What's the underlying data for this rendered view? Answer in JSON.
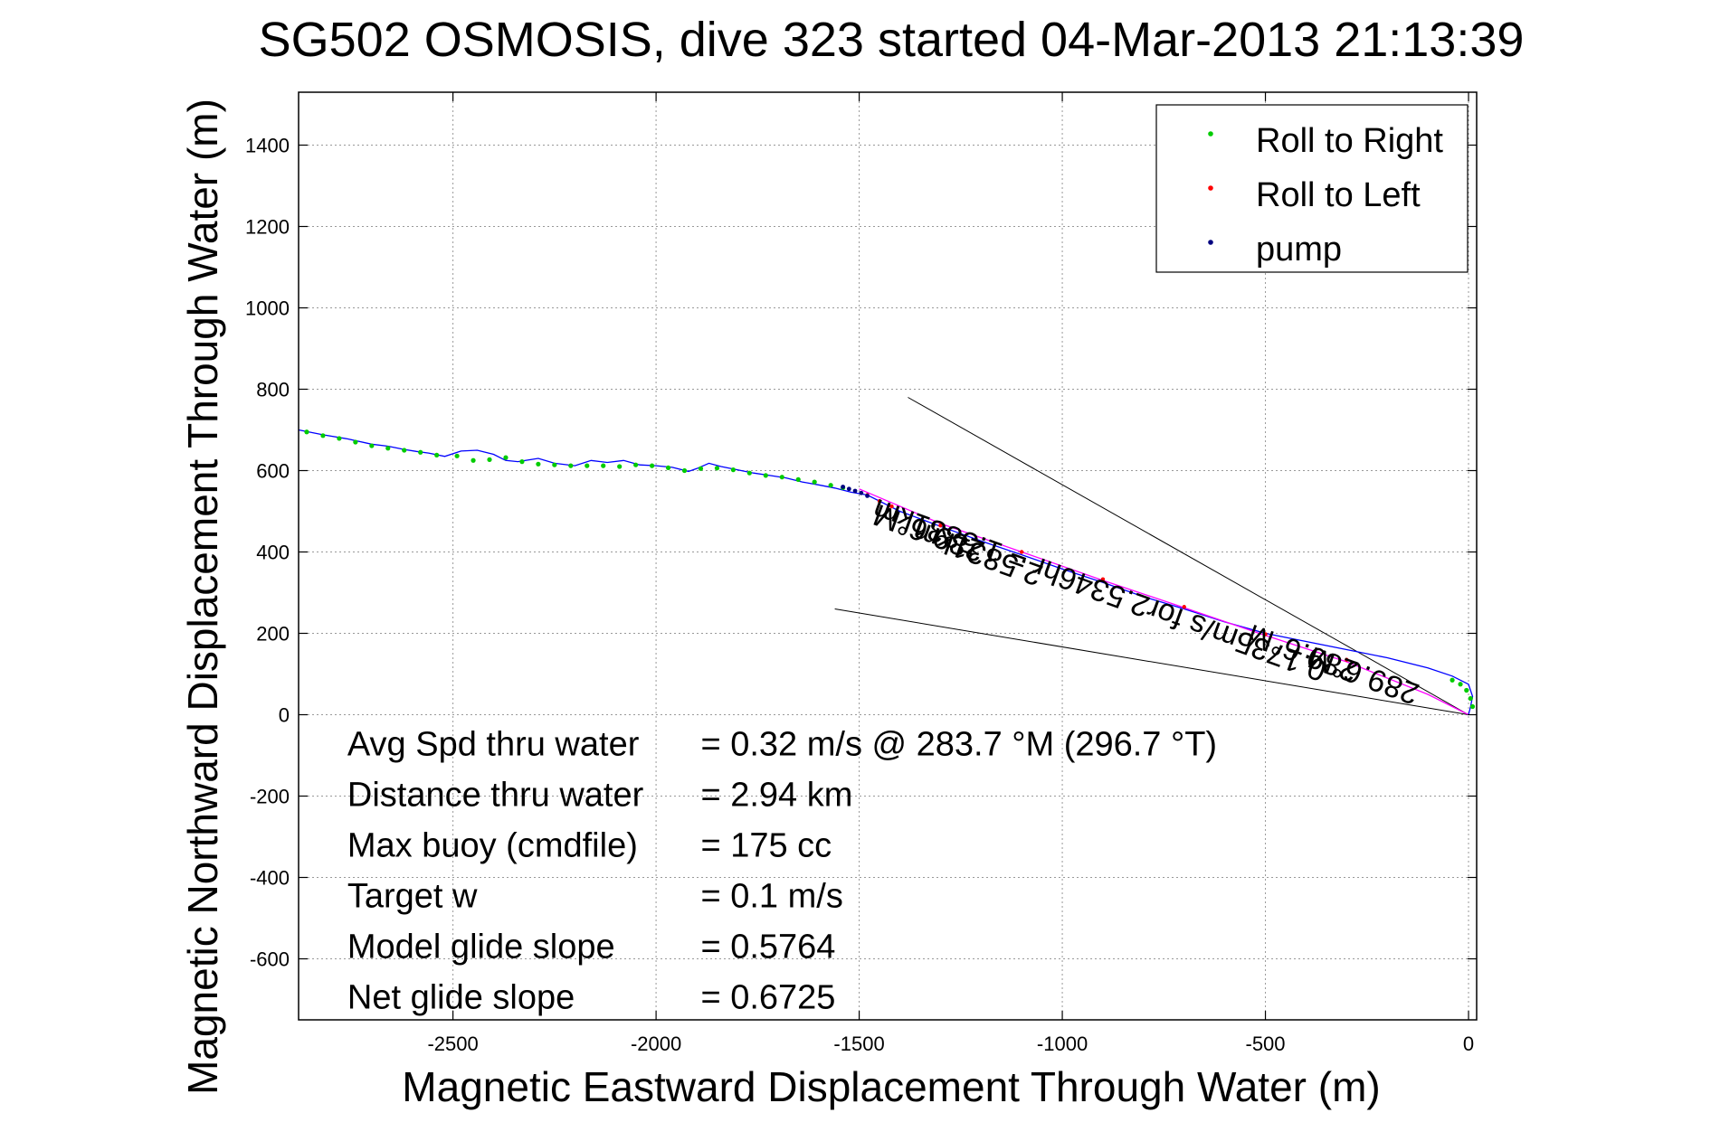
{
  "chart_data": {
    "type": "line",
    "title": "SG502 OSMOSIS, dive 323 started 04-Mar-2013 21:13:39",
    "xlabel": "Magnetic Eastward Displacement Through Water (m)",
    "ylabel": "Magnetic Northward Displacement Through Water (m)",
    "xlim": [
      -2880,
      20
    ],
    "ylim": [
      -750,
      1530
    ],
    "xticks": [
      -2500,
      -2000,
      -1500,
      -1000,
      -500,
      0
    ],
    "yticks": [
      -600,
      -400,
      -200,
      0,
      200,
      400,
      600,
      800,
      1000,
      1200,
      1400
    ],
    "grid": true,
    "legend_position": "top-right",
    "legend": [
      {
        "label": "Roll to Right",
        "color": "#00cc00"
      },
      {
        "label": "Roll to Left",
        "color": "#ff0000"
      },
      {
        "label": "pump",
        "color": "#000080"
      }
    ],
    "series": [
      {
        "color": "#0000ff",
        "x": [
          -2880,
          -2820,
          -2760,
          -2700,
          -2660,
          -2620,
          -2590,
          -2560,
          -2520,
          -2480,
          -2440,
          -2400,
          -2370,
          -2340,
          -2290,
          -2250,
          -2200,
          -2160,
          -2120,
          -2080,
          -2040,
          -2000,
          -1960,
          -1920,
          -1900,
          -1870,
          -1840,
          -1800,
          -1760,
          -1720,
          -1680,
          -1640,
          -1600,
          -1560,
          -1520,
          -1480,
          -1440,
          -1400,
          -1300,
          -1200,
          -1100,
          -1000,
          -900,
          -800,
          -700,
          -600,
          -500,
          -400,
          -300,
          -200,
          -100,
          -40,
          0,
          10,
          5,
          0
        ],
        "y": [
          700,
          688,
          678,
          665,
          660,
          652,
          647,
          643,
          635,
          648,
          650,
          640,
          625,
          622,
          630,
          618,
          612,
          625,
          620,
          625,
          614,
          612,
          608,
          598,
          605,
          618,
          610,
          602,
          594,
          588,
          582,
          572,
          565,
          557,
          547,
          540,
          520,
          500,
          463,
          427,
          393,
          358,
          325,
          290,
          260,
          228,
          200,
          180,
          160,
          140,
          115,
          95,
          75,
          45,
          20,
          0
        ]
      },
      {
        "color": "#ff00ff",
        "x": [
          -1500,
          -1300,
          -1100,
          -900,
          -700,
          -500,
          -300,
          -100,
          0
        ],
        "y": [
          555,
          470,
          400,
          330,
          263,
          195,
          130,
          50,
          0
        ]
      }
    ],
    "roll_right_x": [
      -2860,
      -2820,
      -2780,
      -2740,
      -2700,
      -2660,
      -2620,
      -2580,
      -2540,
      -2490,
      -2450,
      -2410,
      -2370,
      -2330,
      -2290,
      -2250,
      -2210,
      -2170,
      -2130,
      -2090,
      -2050,
      -2010,
      -1970,
      -1930,
      -1890,
      -1850,
      -1810,
      -1770,
      -1730,
      -1690,
      -1650,
      -1610,
      -1570,
      -1540,
      -40,
      -20,
      -5,
      5,
      10
    ],
    "roll_right_y": [
      695,
      686,
      679,
      670,
      661,
      655,
      650,
      645,
      638,
      636,
      625,
      627,
      632,
      622,
      616,
      614,
      612,
      612,
      612,
      610,
      614,
      612,
      607,
      600,
      605,
      606,
      602,
      594,
      588,
      584,
      578,
      572,
      564,
      558,
      85,
      75,
      60,
      40,
      20
    ],
    "roll_left_x": [
      -1480,
      -1450,
      -1420,
      -1300,
      -1100,
      -900,
      -700,
      -500,
      -300
    ],
    "roll_left_y": [
      540,
      525,
      512,
      465,
      400,
      333,
      265,
      198,
      135
    ],
    "pump_x": [
      -1540,
      -1525,
      -1510,
      -1495,
      -1480
    ],
    "pump_y": [
      560,
      555,
      550,
      545,
      538
    ],
    "heading_lines": [
      {
        "x": [
          0,
          -1380
        ],
        "y": [
          0,
          780
        ]
      },
      {
        "x": [
          0,
          -1560
        ],
        "y": [
          0,
          260
        ]
      }
    ],
    "annotations": [
      {
        "text": "289.6°M",
        "x": -1320,
        "y": 470,
        "rotate": 200
      },
      {
        "text": "2.5831km",
        "x": -1200,
        "y": 420,
        "rotate": 200
      },
      {
        "text": "0.1735m/s for2.5346hr = 1.5831km",
        "x": -900,
        "y": 330,
        "rotate": 200
      },
      {
        "text": "289.6°M",
        "x": -400,
        "y": 175,
        "rotate": 200
      },
      {
        "text": "289.6°M",
        "x": -250,
        "y": 120,
        "rotate": 200
      }
    ],
    "stats": [
      {
        "label": "Avg Spd thru water",
        "value": "=  0.32 m/s @ 283.7 °M (296.7 °T)"
      },
      {
        "label": "Distance thru water",
        "value": "=  2.94 km"
      },
      {
        "label": "Max buoy (cmdfile)",
        "value": "= 175 cc"
      },
      {
        "label": "Target w",
        "value": "= 0.1 m/s"
      },
      {
        "label": "Model glide slope",
        "value": "= 0.5764"
      },
      {
        "label": "Net glide slope",
        "value": "= 0.6725"
      }
    ]
  }
}
